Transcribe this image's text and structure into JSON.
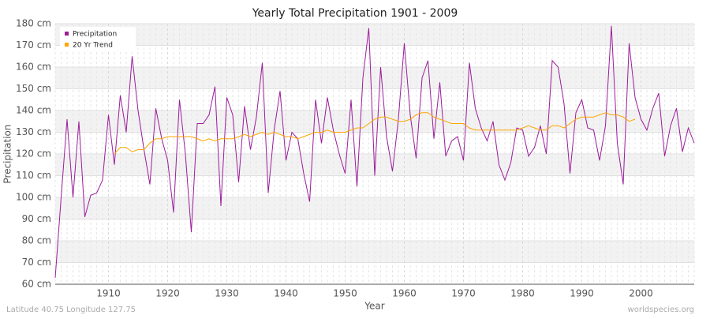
{
  "chart_data": {
    "type": "line",
    "title": "Yearly Total Precipitation 1901 - 2009",
    "x_label": "Year",
    "y_label": "Precipitation",
    "footer_left": "Latitude 40.75 Longitude 127.75",
    "footer_right": "worldspecies.org",
    "x": [
      1901,
      1902,
      1903,
      1904,
      1905,
      1906,
      1907,
      1908,
      1909,
      1910,
      1911,
      1912,
      1913,
      1914,
      1915,
      1916,
      1917,
      1918,
      1919,
      1920,
      1921,
      1922,
      1923,
      1924,
      1925,
      1926,
      1927,
      1928,
      1929,
      1930,
      1931,
      1932,
      1933,
      1934,
      1935,
      1936,
      1937,
      1938,
      1939,
      1940,
      1941,
      1942,
      1943,
      1944,
      1945,
      1946,
      1947,
      1948,
      1949,
      1950,
      1951,
      1952,
      1953,
      1954,
      1955,
      1956,
      1957,
      1958,
      1959,
      1960,
      1961,
      1962,
      1963,
      1964,
      1965,
      1966,
      1967,
      1968,
      1969,
      1970,
      1971,
      1972,
      1973,
      1974,
      1975,
      1976,
      1977,
      1978,
      1979,
      1980,
      1981,
      1982,
      1983,
      1984,
      1985,
      1986,
      1987,
      1988,
      1989,
      1990,
      1991,
      1992,
      1993,
      1994,
      1995,
      1996,
      1997,
      1998,
      1999,
      2000,
      2001,
      2002,
      2003,
      2004,
      2005,
      2006,
      2007,
      2008,
      2009
    ],
    "series": [
      {
        "name": "Precipitation",
        "color": "#9b1c9b",
        "values": [
          63,
          100,
          136,
          100,
          135,
          91,
          101,
          102,
          108,
          138,
          115,
          147,
          130,
          165,
          140,
          122,
          106,
          141,
          127,
          117,
          93,
          145,
          120,
          84,
          134,
          134,
          138,
          151,
          96,
          146,
          138,
          107,
          142,
          122,
          137,
          162,
          102,
          131,
          149,
          117,
          130,
          127,
          111,
          98,
          145,
          125,
          146,
          131,
          120,
          111,
          145,
          105,
          155,
          178,
          110,
          160,
          128,
          112,
          136,
          171,
          138,
          118,
          155,
          163,
          127,
          153,
          119,
          126,
          128,
          117,
          162,
          141,
          132,
          126,
          135,
          115,
          108,
          116,
          132,
          131,
          119,
          123,
          133,
          120,
          163,
          160,
          143,
          111,
          139,
          145,
          132,
          131,
          117,
          133,
          179,
          125,
          106,
          171,
          146,
          136,
          131,
          141,
          148,
          119,
          133,
          141,
          121,
          132,
          125
        ]
      },
      {
        "name": "20 Yr Trend",
        "color": "#ffa500",
        "values": [
          null,
          null,
          null,
          null,
          null,
          null,
          null,
          null,
          null,
          null,
          120,
          123,
          123,
          121,
          122,
          122,
          125,
          127,
          127,
          128,
          128,
          128,
          128,
          128,
          127,
          126,
          127,
          126,
          127,
          127,
          127,
          128,
          129,
          128,
          129,
          130,
          129,
          130,
          129,
          128,
          128,
          127,
          128,
          129,
          130,
          130,
          131,
          130,
          130,
          130,
          131,
          132,
          132,
          134,
          136,
          137,
          137,
          136,
          135,
          135,
          136,
          138,
          139,
          139,
          137,
          136,
          135,
          134,
          134,
          134,
          132,
          131,
          131,
          131,
          131,
          131,
          131,
          131,
          131,
          132,
          133,
          132,
          131,
          131,
          133,
          133,
          132,
          134,
          136,
          137,
          137,
          137,
          138,
          139,
          138,
          138,
          137,
          135,
          136,
          null,
          null,
          null,
          null,
          null,
          null,
          null,
          null,
          null,
          null
        ]
      }
    ],
    "xlim": [
      1901,
      2009
    ],
    "xticks": [
      1910,
      1920,
      1930,
      1940,
      1950,
      1960,
      1970,
      1980,
      1990,
      2000
    ],
    "ylim": [
      60,
      180
    ],
    "yticks": [
      {
        "value": 60,
        "label": "60 cm"
      },
      {
        "value": 70,
        "label": "70 cm"
      },
      {
        "value": 80,
        "label": "80 cm"
      },
      {
        "value": 90,
        "label": "90 cm"
      },
      {
        "value": 100,
        "label": "100 cm"
      },
      {
        "value": 110,
        "label": "110 cm"
      },
      {
        "value": 120,
        "label": "120 cm"
      },
      {
        "value": 130,
        "label": "130 cm"
      },
      {
        "value": 140,
        "label": "140 cm"
      },
      {
        "value": 150,
        "label": "150 cm"
      },
      {
        "value": 160,
        "label": "160 cm"
      },
      {
        "value": 170,
        "label": "170 cm"
      },
      {
        "value": 180,
        "label": "180 cm"
      }
    ],
    "grid": true,
    "legend": "top-left"
  }
}
